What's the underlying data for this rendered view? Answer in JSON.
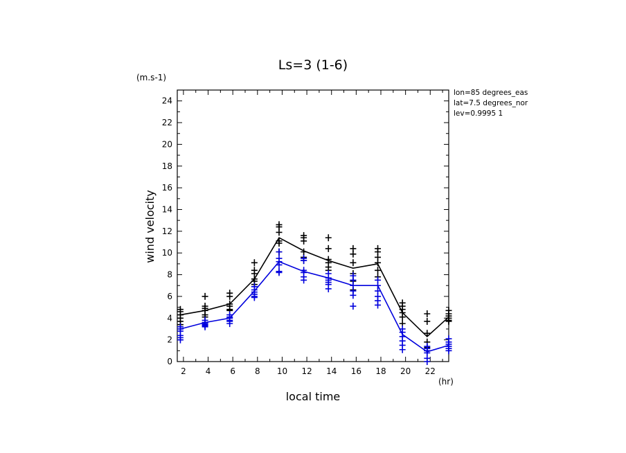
{
  "chart_data": {
    "type": "scatter",
    "title": "Ls=3 (1-6)",
    "xlabel": "local time",
    "ylabel": "wind velocity",
    "x_unit": "(hr)",
    "y_unit": "(m.s-1)",
    "xlim": [
      1.5,
      23.5
    ],
    "ylim": [
      0,
      25
    ],
    "xticks": [
      2,
      4,
      6,
      8,
      10,
      12,
      14,
      16,
      18,
      20,
      22
    ],
    "yticks": [
      0,
      2,
      4,
      6,
      8,
      10,
      12,
      14,
      16,
      18,
      20,
      22,
      24
    ],
    "grid": false,
    "annotations": [
      "lon=85 degrees_eas",
      "lat=7.5 degrees_nor",
      "lev=0.9995 1"
    ],
    "x": [
      1.75,
      3.75,
      5.75,
      7.75,
      9.75,
      11.75,
      13.75,
      15.75,
      17.75,
      19.75,
      21.75,
      23.5
    ],
    "series": [
      {
        "color": "#000000",
        "line": [
          4.3,
          4.7,
          5.3,
          7.6,
          11.4,
          10.2,
          9.3,
          8.6,
          9.0,
          4.5,
          2.3,
          4.1
        ],
        "points": [
          [
            4.8,
            4.6,
            4.3,
            4.0,
            3.7,
            3.4
          ],
          [
            6.0,
            5.1,
            4.9,
            4.7,
            4.3,
            4.1
          ],
          [
            6.3,
            6.0,
            5.3,
            5.1,
            4.8,
            4.7
          ],
          [
            9.1,
            8.4,
            8.1,
            7.6,
            7.4,
            7.1
          ],
          [
            12.6,
            12.4,
            11.9,
            11.1,
            10.9,
            10.1
          ],
          [
            11.6,
            11.4,
            11.1,
            10.1,
            9.6,
            9.3
          ],
          [
            11.4,
            10.4,
            9.4,
            9.1,
            8.7,
            8.4
          ],
          [
            10.4,
            9.9,
            9.1,
            8.1,
            7.4,
            6.6
          ],
          [
            10.4,
            10.1,
            9.6,
            9.1,
            8.4,
            7.8
          ],
          [
            5.4,
            5.1,
            4.8,
            4.5,
            4.1,
            3.5
          ],
          [
            4.4,
            3.7,
            2.6,
            1.8,
            1.3,
            1.0
          ],
          [
            4.7,
            4.4,
            4.2,
            4.0,
            3.8,
            3.7
          ]
        ]
      },
      {
        "color": "#0000dd",
        "line": [
          3.0,
          3.6,
          4.0,
          6.5,
          9.2,
          8.3,
          7.7,
          7.0,
          7.0,
          2.5,
          0.9,
          1.5
        ],
        "points": [
          [
            3.2,
            3.0,
            2.8,
            2.4,
            2.2,
            2.0
          ],
          [
            3.8,
            3.6,
            3.5,
            3.4,
            3.3,
            3.2
          ],
          [
            4.3,
            4.1,
            4.0,
            3.8,
            3.7,
            3.5
          ],
          [
            6.9,
            6.6,
            6.4,
            6.2,
            6.0,
            5.9
          ],
          [
            10.1,
            9.5,
            9.2,
            8.9,
            8.3,
            8.2
          ],
          [
            9.5,
            9.3,
            8.4,
            8.2,
            7.8,
            7.5
          ],
          [
            8.1,
            7.7,
            7.5,
            7.3,
            7.1,
            6.7
          ],
          [
            7.9,
            7.5,
            7.0,
            6.5,
            6.1,
            5.1
          ],
          [
            7.5,
            7.0,
            6.5,
            6.0,
            5.6,
            5.2
          ],
          [
            3.0,
            2.7,
            2.3,
            1.9,
            1.5,
            1.1
          ],
          [
            1.4,
            1.2,
            1.0,
            0.8,
            0.3,
            0.0
          ],
          [
            2.1,
            1.8,
            1.6,
            1.4,
            1.2,
            1.0
          ]
        ]
      }
    ]
  }
}
